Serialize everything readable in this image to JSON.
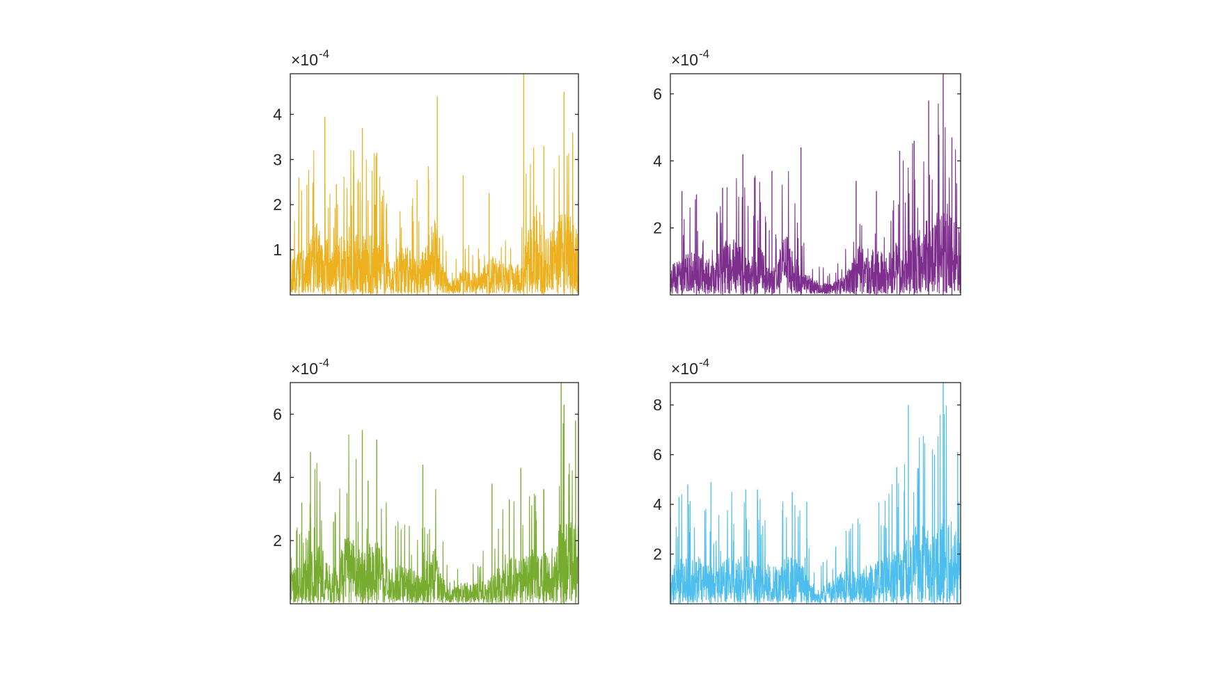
{
  "figure": {
    "background": "#ffffff",
    "axis_color": "#262626"
  },
  "chart_data": [
    {
      "type": "line",
      "title": "",
      "xlabel": "",
      "ylabel": "",
      "exponent_label": "×10",
      "exponent_power": "-4",
      "ylim": [
        0,
        4.9
      ],
      "yticks": [
        1,
        2,
        3,
        4
      ],
      "ytick_labels": [
        "1",
        "2",
        "3",
        "4"
      ],
      "grid": false,
      "color": "#EDB120",
      "series": [
        {
          "x": [
            0,
            5,
            10,
            15,
            20,
            25,
            30,
            35,
            40,
            45,
            50,
            55,
            60,
            65,
            70,
            75,
            80,
            85,
            90,
            95,
            100
          ],
          "envelope_values": [
            1.7,
            2.6,
            3.95,
            2.4,
            3.7,
            3.15,
            3.2,
            1.6,
            2.7,
            1.9,
            4.4,
            0.6,
            1.4,
            1.1,
            2.0,
            1.6,
            1.6,
            4.9,
            3.3,
            4.5,
            3.6
          ],
          "peak_values": [
            {
              "x": 3,
              "y": 2.6
            },
            {
              "x": 12,
              "y": 3.95
            },
            {
              "x": 16,
              "y": 2.45
            },
            {
              "x": 22,
              "y": 3.2
            },
            {
              "x": 25,
              "y": 3.7
            },
            {
              "x": 30,
              "y": 3.15
            },
            {
              "x": 44,
              "y": 2.55
            },
            {
              "x": 48,
              "y": 2.55
            },
            {
              "x": 51,
              "y": 4.4
            },
            {
              "x": 60,
              "y": 2.65
            },
            {
              "x": 69,
              "y": 2.25
            },
            {
              "x": 81,
              "y": 4.9
            },
            {
              "x": 88,
              "y": 3.3
            },
            {
              "x": 95,
              "y": 4.5
            },
            {
              "x": 98,
              "y": 3.6
            }
          ]
        }
      ]
    },
    {
      "type": "line",
      "title": "",
      "xlabel": "",
      "ylabel": "",
      "exponent_label": "×10",
      "exponent_power": "-4",
      "ylim": [
        0,
        6.6
      ],
      "yticks": [
        2,
        4,
        6
      ],
      "ytick_labels": [
        "2",
        "4",
        "6"
      ],
      "grid": false,
      "color": "#7E2F8E",
      "series": [
        {
          "x": [
            0,
            5,
            10,
            15,
            20,
            25,
            30,
            35,
            40,
            45,
            50,
            55,
            60,
            65,
            70,
            75,
            80,
            85,
            90,
            95,
            100
          ],
          "envelope_values": [
            2.0,
            3.1,
            3.0,
            2.3,
            4.2,
            3.5,
            3.7,
            2.0,
            4.4,
            1.8,
            1.0,
            0.7,
            1.3,
            3.4,
            3.2,
            3.0,
            4.4,
            4.6,
            5.8,
            6.6,
            4.7
          ],
          "peak_values": [
            {
              "x": 4,
              "y": 3.1
            },
            {
              "x": 9,
              "y": 3.0
            },
            {
              "x": 18,
              "y": 3.2
            },
            {
              "x": 25,
              "y": 4.2
            },
            {
              "x": 29,
              "y": 3.5
            },
            {
              "x": 35,
              "y": 3.7
            },
            {
              "x": 45,
              "y": 4.4
            },
            {
              "x": 64,
              "y": 3.4
            },
            {
              "x": 71,
              "y": 3.1
            },
            {
              "x": 79,
              "y": 4.3
            },
            {
              "x": 84,
              "y": 4.6
            },
            {
              "x": 89,
              "y": 5.8
            },
            {
              "x": 94,
              "y": 6.6
            },
            {
              "x": 97,
              "y": 4.7
            }
          ]
        }
      ]
    },
    {
      "type": "line",
      "title": "",
      "xlabel": "",
      "ylabel": "",
      "exponent_label": "×10",
      "exponent_power": "-4",
      "ylim": [
        0,
        7.0
      ],
      "yticks": [
        2,
        4,
        6
      ],
      "ytick_labels": [
        "2",
        "4",
        "6"
      ],
      "grid": false,
      "color": "#77AC30",
      "series": [
        {
          "x": [
            0,
            5,
            10,
            15,
            20,
            25,
            30,
            35,
            40,
            45,
            50,
            55,
            60,
            65,
            70,
            75,
            80,
            85,
            90,
            95,
            100
          ],
          "envelope_values": [
            2.4,
            3.2,
            4.8,
            2.6,
            5.5,
            3.9,
            5.2,
            2.6,
            3.0,
            2.2,
            4.4,
            1.0,
            1.6,
            1.5,
            2.0,
            3.9,
            3.3,
            4.3,
            3.6,
            7.0,
            5.8
          ],
          "peak_values": [
            {
              "x": 4,
              "y": 3.2
            },
            {
              "x": 7,
              "y": 4.8
            },
            {
              "x": 15,
              "y": 2.6
            },
            {
              "x": 25,
              "y": 5.5
            },
            {
              "x": 27,
              "y": 3.9
            },
            {
              "x": 30,
              "y": 5.2
            },
            {
              "x": 46,
              "y": 4.4
            },
            {
              "x": 70,
              "y": 3.8
            },
            {
              "x": 76,
              "y": 3.3
            },
            {
              "x": 80,
              "y": 4.3
            },
            {
              "x": 88,
              "y": 3.6
            },
            {
              "x": 94,
              "y": 7.0
            },
            {
              "x": 95,
              "y": 6.3
            },
            {
              "x": 99,
              "y": 5.8
            }
          ]
        }
      ]
    },
    {
      "type": "line",
      "title": "",
      "xlabel": "",
      "ylabel": "",
      "exponent_label": "×10",
      "exponent_power": "-4",
      "ylim": [
        0,
        8.9
      ],
      "yticks": [
        2,
        4,
        6,
        8
      ],
      "ytick_labels": [
        "2",
        "4",
        "6",
        "8"
      ],
      "grid": false,
      "color": "#4DBEEE",
      "series": [
        {
          "x": [
            0,
            5,
            10,
            15,
            20,
            25,
            30,
            35,
            40,
            45,
            50,
            55,
            60,
            65,
            70,
            75,
            80,
            85,
            90,
            95,
            100
          ],
          "envelope_values": [
            3.7,
            4.8,
            4.4,
            3.2,
            4.5,
            4.6,
            4.5,
            3.6,
            4.5,
            4.1,
            1.0,
            2.4,
            3.2,
            3.5,
            3.9,
            4.6,
            5.5,
            8.0,
            6.6,
            8.9,
            6.1
          ],
          "peak_values": [
            {
              "x": 3,
              "y": 4.3
            },
            {
              "x": 6,
              "y": 4.8
            },
            {
              "x": 14,
              "y": 4.9
            },
            {
              "x": 26,
              "y": 4.6
            },
            {
              "x": 30,
              "y": 4.6
            },
            {
              "x": 42,
              "y": 4.5
            },
            {
              "x": 47,
              "y": 4.1
            },
            {
              "x": 78,
              "y": 5.5
            },
            {
              "x": 82,
              "y": 8.0
            },
            {
              "x": 91,
              "y": 6.0
            },
            {
              "x": 94,
              "y": 8.9
            },
            {
              "x": 99,
              "y": 6.1
            }
          ]
        }
      ]
    }
  ]
}
